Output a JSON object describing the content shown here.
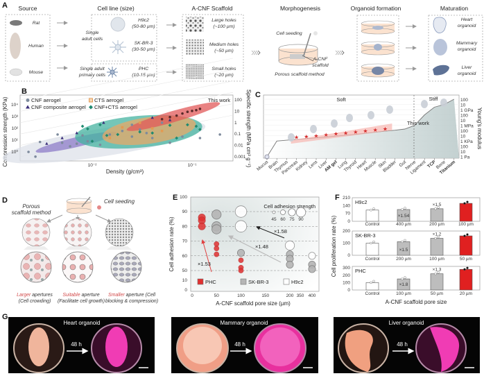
{
  "panel_labels": {
    "a": "A",
    "b": "B",
    "c": "C",
    "d": "D",
    "e": "E",
    "f": "F",
    "g": "G"
  },
  "panel_a": {
    "headers": {
      "source": "Source",
      "cell_line": "Cell line (size)",
      "scaffold": "A-CNF Scaffold",
      "morphogenesis": "Morphogenesis",
      "organoid_formation": "Organoid formation",
      "maturation": "Maturation"
    },
    "sources": [
      "Rat",
      "Human",
      "Mouse"
    ],
    "single_adult_cells": [
      "Single",
      "adult cells"
    ],
    "single_primary_cells": [
      "Single adult",
      "primary cells"
    ],
    "cell_lines": [
      {
        "name": "H9c2",
        "size": "(50-80 µm)"
      },
      {
        "name": "SK-BR-3",
        "size": "(30-50 µm)"
      },
      {
        "name": "PHC",
        "size": "(10-15 µm)"
      }
    ],
    "scaffolds": [
      {
        "name": "Large holes",
        "size": "(~100 µm)"
      },
      {
        "name": "Medium holes",
        "size": "(~50 µm)"
      },
      {
        "name": "Small holes",
        "size": "(~20 µm)"
      }
    ],
    "morph": {
      "cell_seeding": "Cell seeding",
      "acnf": "A-CNF",
      "scaffold": "scaffold",
      "method": "Porous scaffold method"
    },
    "maturation": [
      {
        "l1": "Heart",
        "l2": "organoid"
      },
      {
        "l1": "Mammary",
        "l2": "organoid"
      },
      {
        "l1": "Liver",
        "l2": "organoid"
      }
    ]
  },
  "chart_data": [
    {
      "panel": "B",
      "type": "scatter",
      "xscale": "log",
      "yscale": "log",
      "xlabel": "Density (g/cm³)",
      "ylabel": "Compression strength (KPa)",
      "y2label": "Specific strength (MPa cm³ g⁻¹)",
      "xticks": [
        "10⁻²",
        "10⁻¹"
      ],
      "yticks": [
        "10⁰",
        "10¹",
        "10²",
        "10³",
        "10⁴"
      ],
      "y2ticks": [
        "0.001",
        "0.01",
        "0.1",
        "1",
        "10",
        "100"
      ],
      "xlim": [
        0.0019,
        0.26
      ],
      "ylim": [
        0.2,
        20000
      ],
      "grid": true,
      "legend": "top-left",
      "annotation": "This work",
      "series": [
        {
          "name": "CNF aerogel",
          "color": "#7d8a9c",
          "points": [
            [
              0.0023,
              1
            ],
            [
              0.0027,
              0.4
            ],
            [
              0.003,
              7
            ],
            [
              0.0045,
              30
            ],
            [
              0.005,
              6
            ],
            [
              0.006,
              3
            ],
            [
              0.007,
              5
            ],
            [
              0.008,
              25
            ],
            [
              0.009,
              8
            ],
            [
              0.012,
              4
            ],
            [
              0.015,
              30
            ],
            [
              0.02,
              60
            ],
            [
              0.025,
              20
            ],
            [
              0.03,
              80
            ],
            [
              0.035,
              40
            ],
            [
              0.04,
              15
            ],
            [
              0.06,
              6
            ],
            [
              0.08,
              20
            ],
            [
              0.12,
              15
            ],
            [
              0.19,
              30
            ],
            [
              0.05,
              300
            ],
            [
              0.025,
              200
            ]
          ]
        },
        {
          "name": "CTS aerogel",
          "color": "#e39a52",
          "points": [
            [
              0.015,
              15
            ],
            [
              0.02,
              120
            ],
            [
              0.03,
              300
            ],
            [
              0.04,
              100
            ],
            [
              0.05,
              60
            ]
          ]
        },
        {
          "name": "CNF composite aerogel",
          "color": "#3b2f7a",
          "points": [
            [
              0.0035,
              5
            ],
            [
              0.005,
              15
            ],
            [
              0.007,
              40
            ],
            [
              0.013,
              300
            ],
            [
              0.04,
              800
            ],
            [
              0.06,
              500
            ]
          ]
        },
        {
          "name": "CNF+CTS aerogel",
          "color": "#1f8a70",
          "points": [
            [
              0.008,
              150
            ],
            [
              0.009,
              90
            ],
            [
              0.01,
              8
            ],
            [
              0.012,
              200
            ],
            [
              0.014,
              25
            ],
            [
              0.018,
              30
            ],
            [
              0.03,
              50
            ],
            [
              0.04,
              40
            ],
            [
              0.06,
              180
            ],
            [
              0.09,
              200
            ],
            [
              0.11,
              150
            ],
            [
              0.12,
              80
            ],
            [
              0.07,
              15
            ]
          ]
        },
        {
          "name": "This work",
          "color": "#5a2a2a",
          "points": [
            [
              0.05,
              600
            ],
            [
              0.06,
              900
            ],
            [
              0.07,
              1200
            ],
            [
              0.08,
              1800
            ],
            [
              0.09,
              2500
            ],
            [
              0.1,
              3000
            ],
            [
              0.11,
              3500
            ],
            [
              0.12,
              4500
            ]
          ]
        }
      ]
    },
    {
      "panel": "C",
      "type": "line",
      "yscale": "log",
      "y2label": "Young's modulus",
      "categories": [
        "Mucus",
        "Brain",
        "Thymus",
        "Pancreas",
        "Kidney",
        "Lens",
        "Liver",
        "AM gel",
        "Lung",
        "Thyroid",
        "Heart",
        "Muscle",
        "Skin",
        "Bladder",
        "Gut",
        "Nerve",
        "Ligament",
        "TCP",
        "Bone",
        "Titanium"
      ],
      "bold_categories": [
        "AM gel",
        "TCP",
        "Titanium"
      ],
      "values_pa": [
        1,
        1000,
        1500,
        2000,
        3000,
        4000,
        6000,
        9000,
        13000,
        20000,
        30000,
        50000,
        80000,
        120000,
        200000,
        1000000,
        100000000,
        3000000000,
        10000000000,
        100000000000
      ],
      "this_work_categories": [
        "Pancreas",
        "Kidney",
        "Lens",
        "Liver",
        "AM gel",
        "Lung",
        "Thyroid",
        "Heart",
        "Muscle",
        "Skin"
      ],
      "regions": {
        "soft": "Soft",
        "stiff": "Stiff"
      },
      "annotation": "This work",
      "yticks": [
        "100",
        "10",
        "1 GPa",
        "100",
        "10",
        "1 MPa",
        "100",
        "10",
        "1 KPa",
        "100",
        "10",
        "1 Pa"
      ]
    },
    {
      "panel": "E",
      "type": "scatter",
      "xlabel": "A-CNF scaffold pore size (µm)",
      "ylabel": "Cell adhesion rate (%)",
      "xticks": [
        "0",
        "50",
        "100",
        "150",
        "200",
        "350",
        "400"
      ],
      "yticks": [
        "0",
        "10",
        "50",
        "60",
        "70",
        "80",
        "90",
        "100"
      ],
      "size_legend_title": "Cell adhesion strength",
      "size_legend": [
        "45",
        "60",
        "75",
        "90"
      ],
      "annotations": [
        "×1.58",
        "×1.48",
        "×1.53"
      ],
      "series": [
        {
          "name": "PHC",
          "color": "#e03030",
          "points": [
            [
              20,
              86,
              60
            ],
            [
              20,
              84,
              60
            ],
            [
              20,
              80,
              60
            ],
            [
              50,
              68,
              45
            ],
            [
              50,
              65,
              45
            ],
            [
              50,
              61,
              45
            ],
            [
              100,
              57,
              45
            ],
            [
              100,
              52,
              45
            ],
            [
              100,
              50,
              45
            ]
          ]
        },
        {
          "name": "SK-BR-3",
          "color": "#b5b5b5",
          "points": [
            [
              50,
              88,
              75
            ],
            [
              50,
              80,
              75
            ],
            [
              50,
              78,
              75
            ],
            [
              100,
              62,
              60
            ],
            [
              200,
              61,
              60
            ],
            [
              200,
              58,
              60
            ],
            [
              200,
              54,
              60
            ],
            [
              400,
              54,
              60
            ],
            [
              400,
              51,
              60
            ]
          ]
        },
        {
          "name": "H9c2",
          "color": "#ffffff",
          "points": [
            [
              100,
              90,
              90
            ],
            [
              100,
              80,
              90
            ],
            [
              200,
              67,
              75
            ],
            [
              400,
              60,
              60
            ]
          ]
        }
      ]
    },
    {
      "panel": "F",
      "type": "bar",
      "xlabel": "A-CNF scaffold pore size",
      "ylabel": "Cell proliferation rate (%)",
      "subplots": [
        {
          "name": "H9c2",
          "categories": [
            "Control",
            "400 µm",
            "200 µm",
            "100 µm"
          ],
          "values": [
            100,
            105,
            112,
            160
          ],
          "ylim": [
            0,
            210
          ],
          "yticks": [
            "0",
            "70",
            "140",
            "210"
          ],
          "annotations": [
            "×1.54",
            "×1.5"
          ]
        },
        {
          "name": "SK-BR-3",
          "categories": [
            "Control",
            "200 µm",
            "100 µm",
            "50 µm"
          ],
          "values": [
            100,
            112,
            140,
            160
          ],
          "ylim": [
            0,
            200
          ],
          "yticks": [
            "0",
            "100",
            "200"
          ],
          "annotations": [
            "×1.5",
            "×1.2"
          ]
        },
        {
          "name": "PHC",
          "categories": [
            "Control",
            "100 µm",
            "50 µm",
            "20 µm"
          ],
          "values": [
            100,
            150,
            220,
            280
          ],
          "ylim": [
            0,
            320
          ],
          "yticks": [
            "0",
            "100",
            "200",
            "300"
          ],
          "annotations": [
            "×1.8",
            "×1.3"
          ]
        }
      ],
      "bar_colors": [
        "#ffffff",
        "#bdbdbd",
        "#bdbdbd",
        "#e02020"
      ]
    }
  ],
  "panel_d": {
    "method": [
      "Porous",
      "scaffold method"
    ],
    "cell_seeding": "Cell seeding",
    "captions": [
      {
        "hl": "Larger",
        "rest": " apertures",
        "l2": "(Cell crowding)"
      },
      {
        "hl": "Suitable",
        "rest": " aperture",
        "l2": "(Facilitate cell growth)"
      },
      {
        "hl": "Smaller",
        "rest": " aperture (Cell",
        "l2": "blocking & compression)"
      }
    ]
  },
  "panel_g": {
    "panels": [
      {
        "title": "Heart organoid",
        "time": "48 h"
      },
      {
        "title": "Mammary organoid",
        "time": "48 h"
      },
      {
        "title": "Liver organoid",
        "time": "48 h"
      }
    ]
  }
}
